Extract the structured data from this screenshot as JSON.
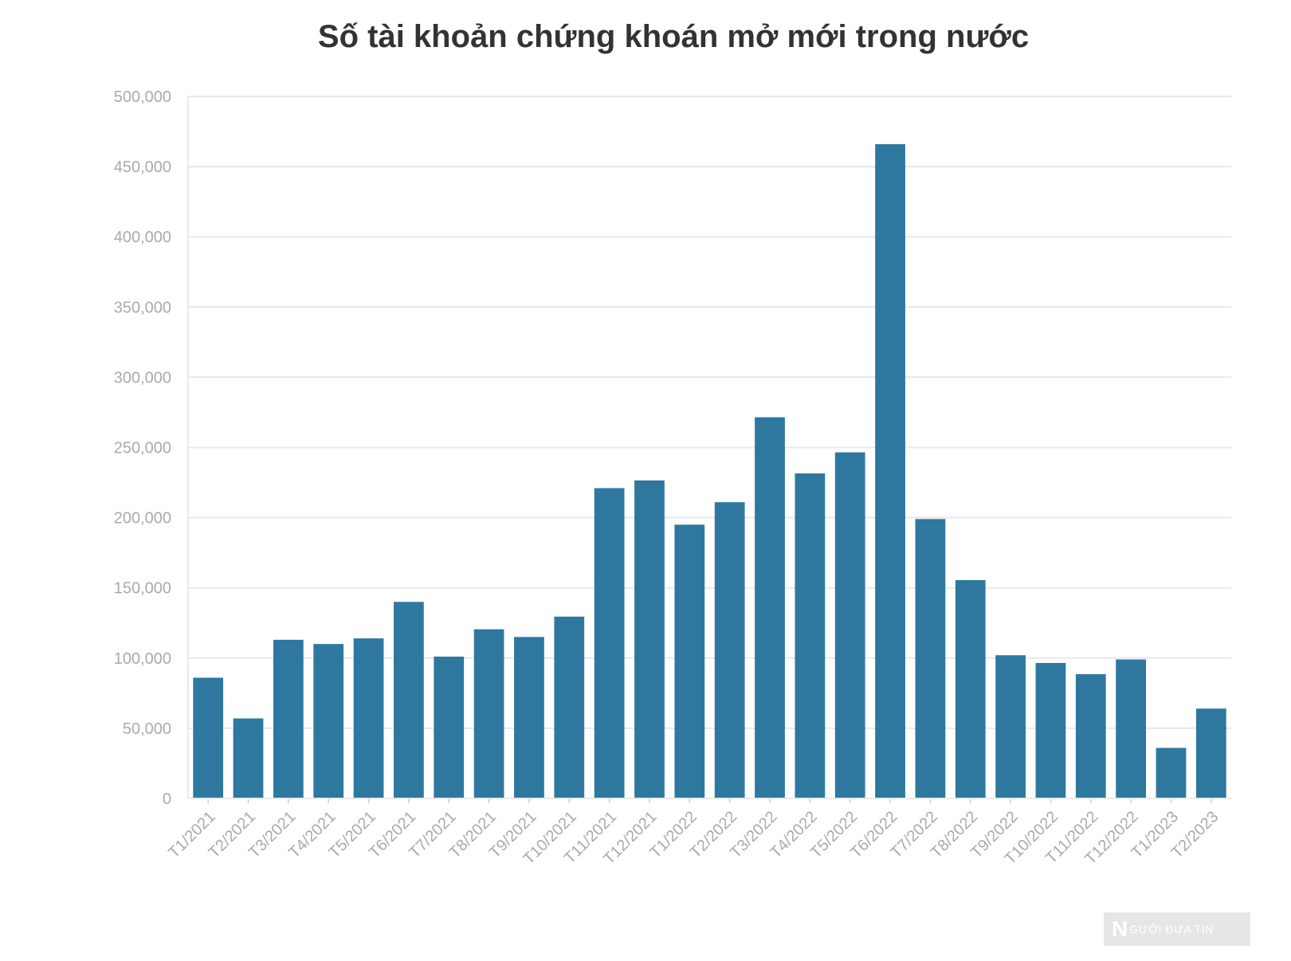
{
  "chart_data": {
    "type": "bar",
    "title": "Số tài khoản chứng khoán mở mới trong nước",
    "xlabel": "",
    "ylabel": "",
    "ylim": [
      0,
      500000
    ],
    "yticks": [
      "0",
      "50,000",
      "100,000",
      "150,000",
      "200,000",
      "250,000",
      "300,000",
      "350,000",
      "400,000",
      "450,000",
      "500,000"
    ],
    "grid": true,
    "bar_color": "#2e78a0",
    "categories": [
      "T1/2021",
      "T2/2021",
      "T3/2021",
      "T4/2021",
      "T5/2021",
      "T6/2021",
      "T7/2021",
      "T8/2021",
      "T9/2021",
      "T10/2021",
      "T11/2021",
      "T12/2021",
      "T1/2022",
      "T2/2022",
      "T3/2022",
      "T4/2022",
      "T5/2022",
      "T6/2022",
      "T7/2022",
      "T8/2022",
      "T9/2022",
      "T10/2022",
      "T11/2022",
      "T12/2022",
      "T1/2023",
      "T2/2023"
    ],
    "values": [
      86000,
      57000,
      113000,
      110000,
      114000,
      140000,
      101000,
      120500,
      115000,
      129500,
      221000,
      226500,
      195000,
      211000,
      271500,
      231500,
      246500,
      466000,
      199000,
      155500,
      102000,
      96500,
      88500,
      99000,
      36000,
      64000
    ]
  },
  "watermark": {
    "mark": "N",
    "text": "GƯỜI ĐƯA TIN"
  }
}
